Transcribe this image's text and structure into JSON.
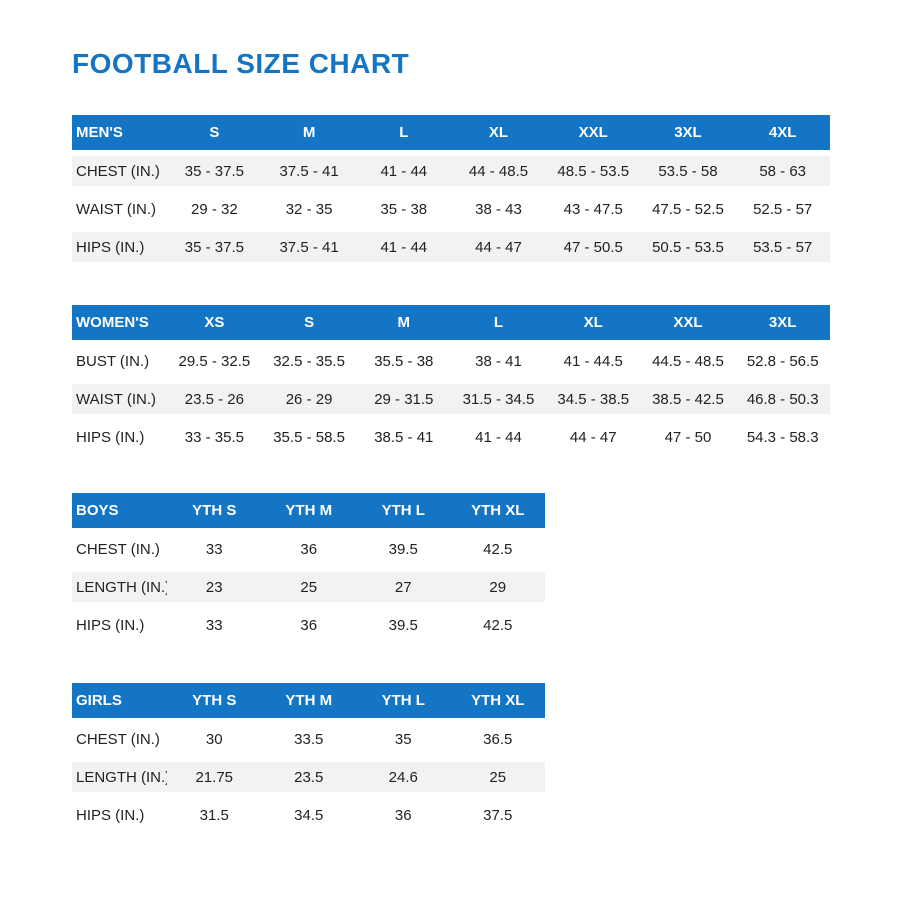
{
  "page": {
    "title": "FOOTBALL SIZE CHART"
  },
  "colors": {
    "accent": "#1375c4",
    "header_text": "#ffffff",
    "row_alt": "#f2f2f2",
    "text": "#222222"
  },
  "tables": [
    {
      "id": "mens",
      "header": [
        "MEN'S",
        "S",
        "M",
        "L",
        "XL",
        "XXL",
        "3XL",
        "4XL"
      ],
      "rows": [
        {
          "label": "CHEST (IN.)",
          "values": [
            "35 - 37.5",
            "37.5 - 41",
            "41 - 44",
            "44 - 48.5",
            "48.5 - 53.5",
            "53.5 - 58",
            "58 - 63"
          ]
        },
        {
          "label": "WAIST (IN.)",
          "values": [
            "29 - 32",
            "32 - 35",
            "35 - 38",
            "38 - 43",
            "43 - 47.5",
            "47.5 - 52.5",
            "52.5 - 57"
          ]
        },
        {
          "label": "HIPS (IN.)",
          "values": [
            "35 - 37.5",
            "37.5 - 41",
            "41 - 44",
            "44 - 47",
            "47 - 50.5",
            "50.5 - 53.5",
            "53.5 - 57"
          ]
        }
      ],
      "shaded_rows": [
        0,
        2
      ],
      "layout": "wide"
    },
    {
      "id": "womens",
      "header": [
        "WOMEN'S",
        "XS",
        "S",
        "M",
        "L",
        "XL",
        "XXL",
        "3XL"
      ],
      "rows": [
        {
          "label": "BUST (IN.)",
          "values": [
            "29.5 - 32.5",
            "32.5 - 35.5",
            "35.5 - 38",
            "38 - 41",
            "41 - 44.5",
            "44.5 - 48.5",
            "52.8 - 56.5"
          ]
        },
        {
          "label": "WAIST (IN.)",
          "values": [
            "23.5 - 26",
            "26 - 29",
            "29 - 31.5",
            "31.5 - 34.5",
            "34.5 - 38.5",
            "38.5 - 42.5",
            "46.8 - 50.3"
          ]
        },
        {
          "label": "HIPS (IN.)",
          "values": [
            "33 - 35.5",
            "35.5 - 58.5",
            "38.5 - 41",
            "41 - 44",
            "44 - 47",
            "47 - 50",
            "54.3 - 58.3"
          ]
        }
      ],
      "shaded_rows": [
        1
      ],
      "layout": "wide"
    },
    {
      "id": "boys",
      "header": [
        "BOYS",
        "YTH S",
        "YTH M",
        "YTH L",
        "YTH XL"
      ],
      "rows": [
        {
          "label": "CHEST (IN.)",
          "values": [
            "33",
            "36",
            "39.5",
            "42.5"
          ]
        },
        {
          "label": "LENGTH (IN.)",
          "values": [
            "23",
            "25",
            "27",
            "29"
          ]
        },
        {
          "label": "HIPS (IN.)",
          "values": [
            "33",
            "36",
            "39.5",
            "42.5"
          ]
        }
      ],
      "shaded_rows": [
        1
      ],
      "layout": "narrow"
    },
    {
      "id": "girls",
      "header": [
        "GIRLS",
        "YTH S",
        "YTH M",
        "YTH L",
        "YTH XL"
      ],
      "rows": [
        {
          "label": "CHEST (IN.)",
          "values": [
            "30",
            "33.5",
            "35",
            "36.5"
          ]
        },
        {
          "label": "LENGTH (IN.)",
          "values": [
            "21.75",
            "23.5",
            "24.6",
            "25"
          ]
        },
        {
          "label": "HIPS (IN.)",
          "values": [
            "31.5",
            "34.5",
            "36",
            "37.5"
          ]
        }
      ],
      "shaded_rows": [
        1
      ],
      "layout": "narrow"
    }
  ]
}
